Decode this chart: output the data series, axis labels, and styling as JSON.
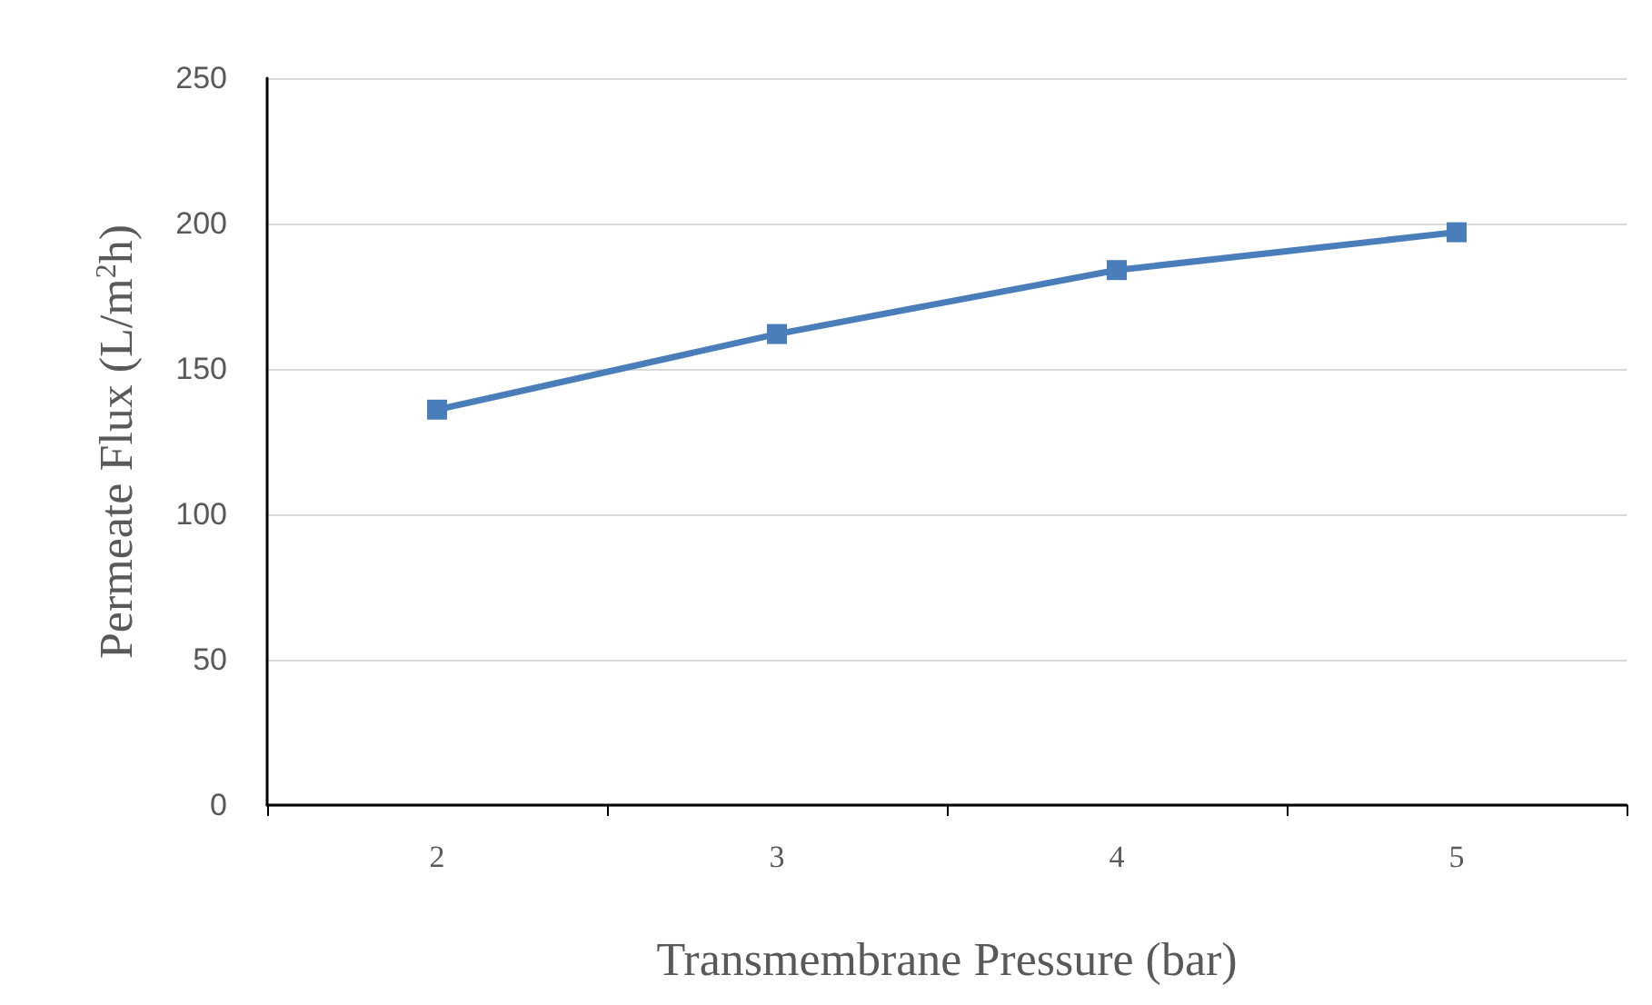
{
  "chart_data": {
    "type": "line",
    "xlabel": "Transmembrane Pressure (bar)",
    "ylabel": "Permeate Flux (L/m$^{2}$h)",
    "categories": [
      "2",
      "3",
      "4",
      "5"
    ],
    "series": [
      {
        "color": "#4a7ebb",
        "values": [
          136,
          162,
          184,
          197
        ]
      }
    ],
    "ylim": [
      0,
      250
    ],
    "yticks": [
      0,
      50,
      100,
      150,
      200,
      250
    ],
    "grid": "y",
    "marker": "square",
    "line_style": "solid"
  }
}
